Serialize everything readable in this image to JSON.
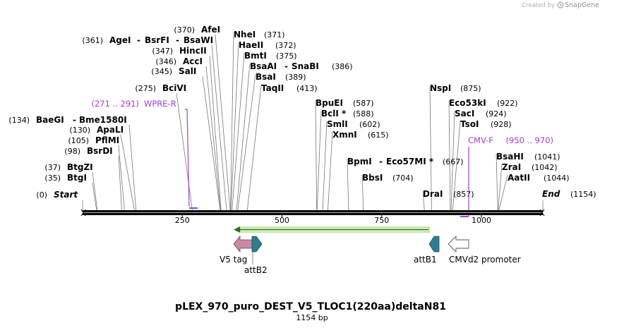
{
  "credit": {
    "text": "Created by",
    "brand": "SnapGene"
  },
  "title": "pLEX_970_puro_DEST_V5_TLOC1(220aa)deltaN81",
  "length_label": "1154 bp",
  "sequence_length": 1154,
  "sites": [
    {
      "pos": "(0)",
      "name": "Start",
      "bp": 0,
      "italic": true
    },
    {
      "pos": "(35)",
      "name": "BtgI",
      "bp": 35
    },
    {
      "pos": "(37)",
      "name": "BtgZI",
      "bp": 37
    },
    {
      "pos": "(98)",
      "name": "BsrDI",
      "bp": 98
    },
    {
      "pos": "(105)",
      "name": "PflMI",
      "bp": 105
    },
    {
      "pos": "(130)",
      "name": "ApaLI",
      "bp": 130
    },
    {
      "pos": "(134)",
      "name": "BaeGI",
      "name2": "Bme1580I",
      "bp": 134
    },
    {
      "pos": "(275)",
      "name": "BciVI",
      "bp": 275
    },
    {
      "pos": "(345)",
      "name": "SalI",
      "bp": 345
    },
    {
      "pos": "(346)",
      "name": "AccI",
      "bp": 346
    },
    {
      "pos": "(347)",
      "name": "HincII",
      "bp": 347
    },
    {
      "pos": "(361)",
      "name": "AgeI",
      "name2": "BsrFI",
      "name3": "BsaWI",
      "bp": 361
    },
    {
      "pos": "(370)",
      "name": "AfeI",
      "bp": 370
    },
    {
      "pos": "(371)",
      "name": "NheI",
      "bp": 371
    },
    {
      "pos": "(372)",
      "name": "HaeII",
      "bp": 372
    },
    {
      "pos": "(375)",
      "name": "BmtI",
      "bp": 375
    },
    {
      "pos": "(386)",
      "name": "BsaAI",
      "name2": "SnaBI",
      "bp": 386
    },
    {
      "pos": "(389)",
      "name": "BsaI",
      "bp": 389
    },
    {
      "pos": "(413)",
      "name": "TaqII",
      "bp": 413
    },
    {
      "pos": "(587)",
      "name": "BpuEI",
      "bp": 587
    },
    {
      "pos": "(588)",
      "name": "BclI *",
      "bp": 588
    },
    {
      "pos": "(602)",
      "name": "SmlI",
      "bp": 602
    },
    {
      "pos": "(615)",
      "name": "XmnI",
      "bp": 615
    },
    {
      "pos": "(667)",
      "name": "BpmI",
      "name2": "Eco57MI *",
      "bp": 667
    },
    {
      "pos": "(704)",
      "name": "BbsI",
      "bp": 704
    },
    {
      "pos": "(857)",
      "name": "DraI",
      "bp": 857
    },
    {
      "pos": "(875)",
      "name": "NspI",
      "bp": 875
    },
    {
      "pos": "(922)",
      "name": "Eco53kI",
      "bp": 922
    },
    {
      "pos": "(924)",
      "name": "SacI",
      "bp": 924
    },
    {
      "pos": "(928)",
      "name": "TsoI",
      "bp": 928
    },
    {
      "pos": "(1041)",
      "name": "BsaHI",
      "bp": 1041
    },
    {
      "pos": "(1042)",
      "name": "ZraI",
      "bp": 1042
    },
    {
      "pos": "(1044)",
      "name": "AatII",
      "bp": 1044
    },
    {
      "pos": "(1154)",
      "name": "End",
      "bp": 1154,
      "italic": true
    }
  ],
  "primers": [
    {
      "name": "WPRE-R",
      "range": "(271 .. 291)",
      "start": 271,
      "end": 291
    },
    {
      "name": "CMV-F",
      "range": "(950 .. 970)",
      "start": 950,
      "end": 970
    }
  ],
  "ticks": [
    {
      "label": "250",
      "bp": 250
    },
    {
      "label": "500",
      "bp": 500
    },
    {
      "label": "750",
      "bp": 750
    },
    {
      "label": "1000",
      "bp": 1000
    }
  ],
  "features": [
    {
      "name": "V5 tag",
      "color": "#c98aa3"
    },
    {
      "name": "attB2",
      "color": "#2f7c8e"
    },
    {
      "name": "attB1",
      "color": "#2f7c8e"
    },
    {
      "name": "CMVd2 promoter",
      "color": "#ffffff"
    }
  ],
  "orf_arrow_color": "#8bd34f"
}
